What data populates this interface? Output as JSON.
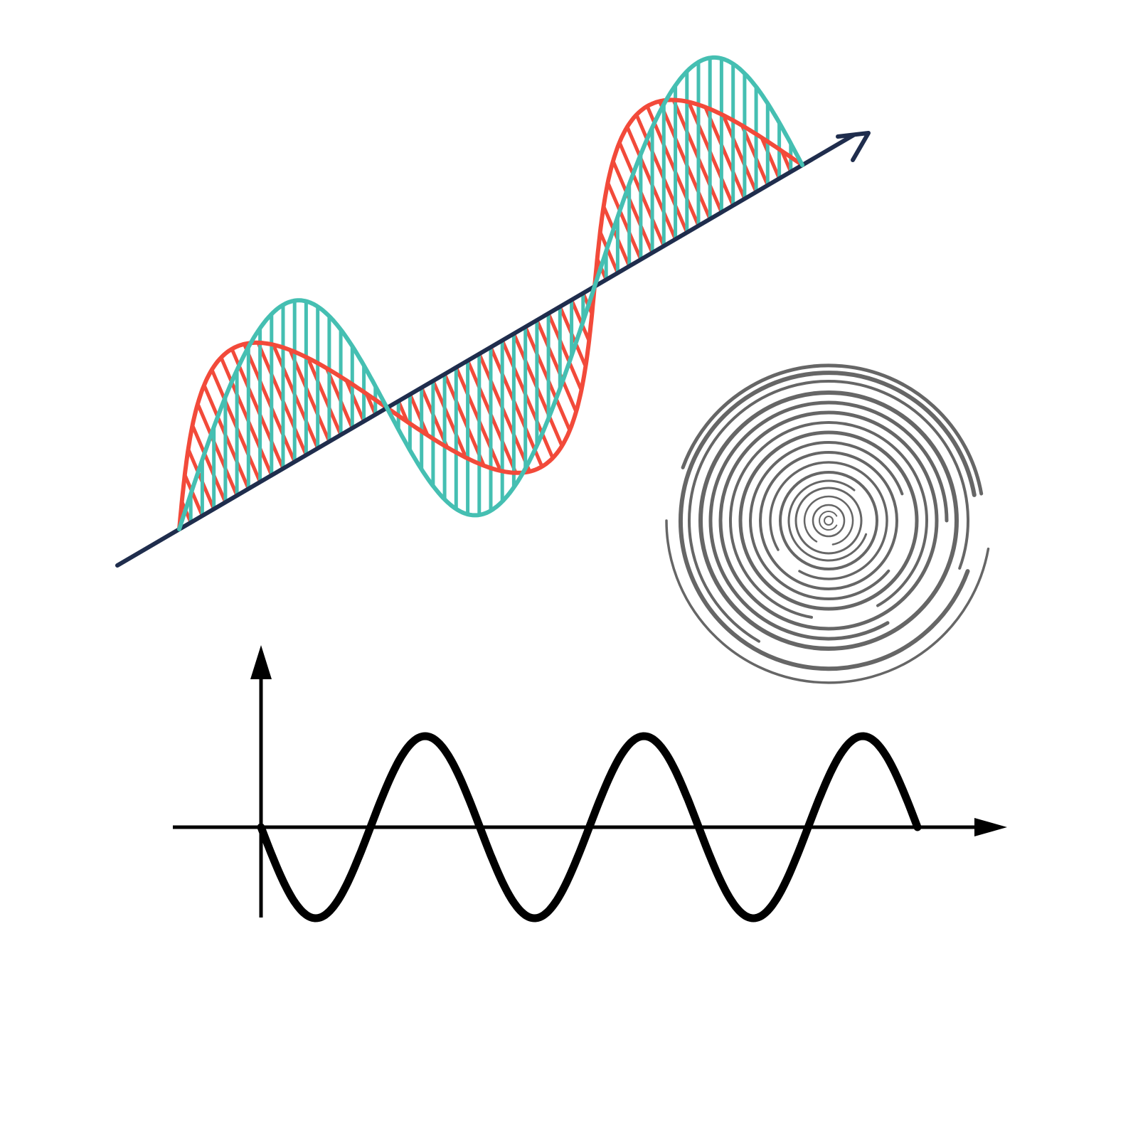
{
  "illustration": {
    "colors": {
      "background": "#ffffff",
      "propagation_axis": "#1f2d4d",
      "electric_field": "#45bfb2",
      "magnetic_field": "#f24a3a",
      "ripples": "#666666",
      "plot_axes": "#000000",
      "plot_wave": "#000000"
    },
    "elements": [
      "electromagnetic-wave-3d",
      "concentric-ripples",
      "sine-wave-plot"
    ]
  },
  "wave_plot": {
    "cycles": 3,
    "starts_with": "trough",
    "axis_labels": []
  }
}
